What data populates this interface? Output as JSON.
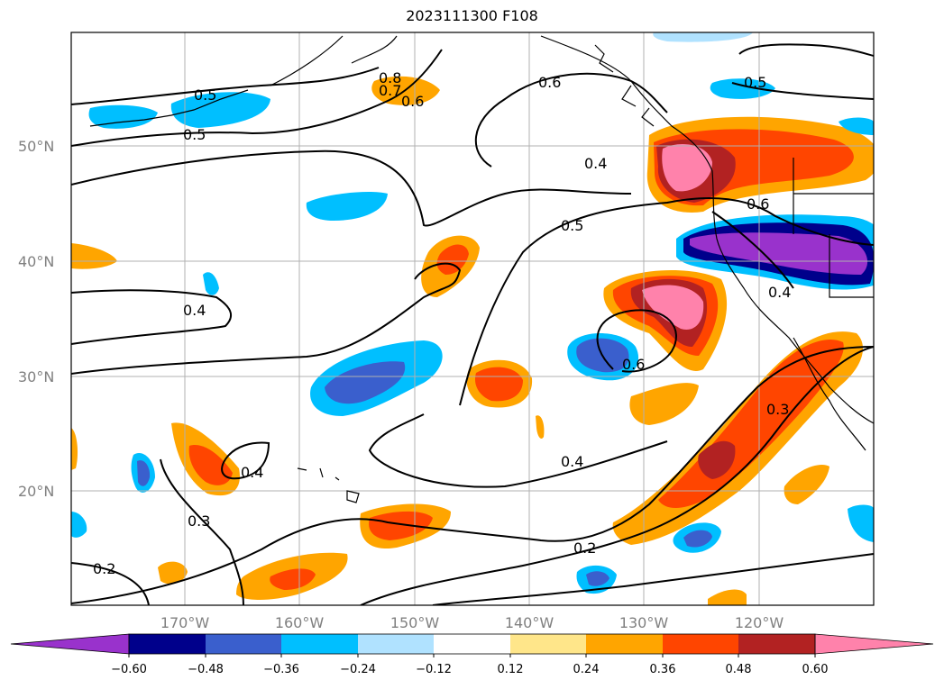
{
  "title": "2023111300 F108",
  "lat_labels": [
    "50°N",
    "40°N",
    "30°N",
    "20°N"
  ],
  "lon_labels": [
    "170°W",
    "160°W",
    "150°W",
    "140°W",
    "130°W",
    "120°W"
  ],
  "colorbar": {
    "ticks": [
      "−0.60",
      "−0.48",
      "−0.36",
      "−0.24",
      "−0.12",
      "0.12",
      "0.24",
      "0.36",
      "0.48",
      "0.60"
    ],
    "colors": [
      "#9932cc",
      "#00008b",
      "#3a5fcd",
      "#00bfff",
      "#b0e2ff",
      "#ffffff",
      "#ffe68a",
      "#ffa500",
      "#ff4500",
      "#b22222",
      "#ff82ab"
    ]
  },
  "contour_labels": [
    "0.5",
    "0.5",
    "0.8",
    "0.7",
    "0.6",
    "0.6",
    "0.5",
    "0.4",
    "0.5",
    "0.6",
    "0.4",
    "0.4",
    "0.6",
    "0.4",
    "0.4",
    "0.3",
    "0.3",
    "0.2",
    "0.2"
  ],
  "colors": {
    "contour": "#000000",
    "gridline": "#b0b0b0"
  }
}
